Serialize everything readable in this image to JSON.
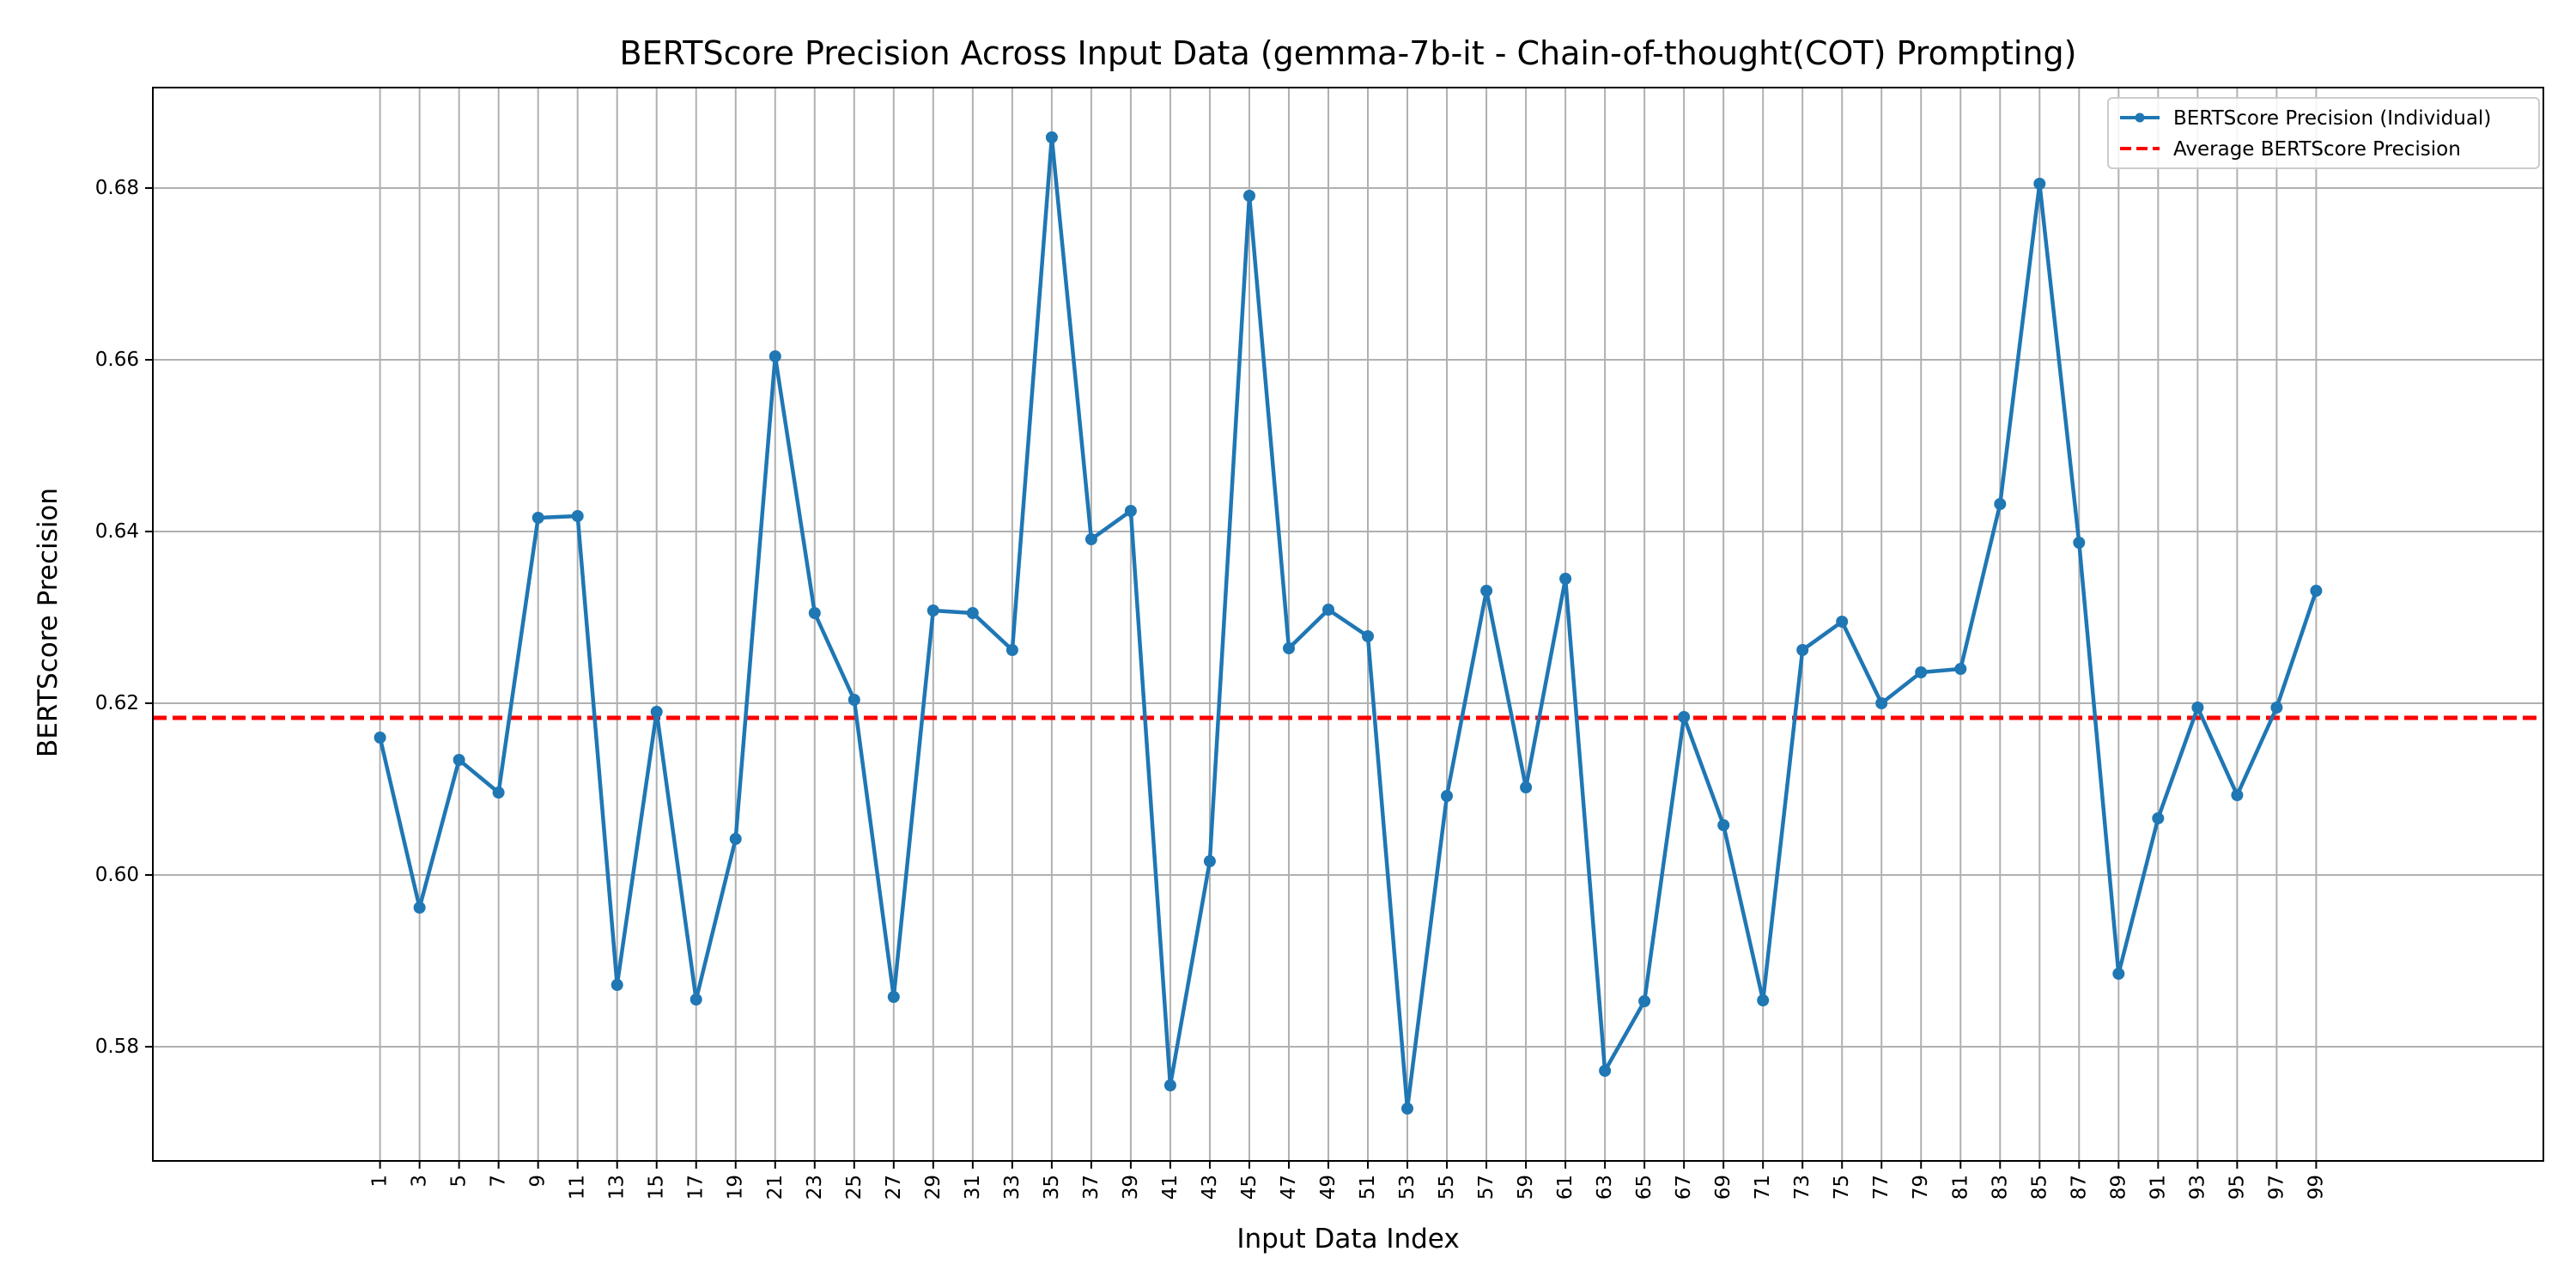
{
  "chart_data": {
    "type": "line",
    "title": "BERTScore Precision Across Input Data (gemma-7b-it - Chain-of-thought(COT) Prompting)",
    "xlabel": "Input Data Index",
    "ylabel": "BERTScore Precision",
    "x": [
      1,
      3,
      5,
      7,
      9,
      11,
      13,
      15,
      17,
      19,
      21,
      23,
      25,
      27,
      29,
      31,
      33,
      35,
      37,
      39,
      41,
      43,
      45,
      47,
      49,
      51,
      53,
      55,
      57,
      59,
      61,
      63,
      65,
      67,
      69,
      71,
      73,
      75,
      77,
      79,
      81,
      83,
      85,
      87,
      89,
      91,
      93,
      95,
      97,
      99
    ],
    "x_tick_labels": [
      "1",
      "3",
      "5",
      "7",
      "9",
      "11",
      "13",
      "15",
      "17",
      "19",
      "21",
      "23",
      "25",
      "27",
      "29",
      "31",
      "33",
      "35",
      "37",
      "39",
      "41",
      "43",
      "45",
      "47",
      "49",
      "51",
      "53",
      "55",
      "57",
      "59",
      "61",
      "63",
      "65",
      "67",
      "69",
      "71",
      "73",
      "75",
      "77",
      "79",
      "81",
      "83",
      "85",
      "87",
      "89",
      "91",
      "93",
      "95",
      "97",
      "99"
    ],
    "y_ticks": [
      0.58,
      0.6,
      0.62,
      0.64,
      0.66,
      0.68
    ],
    "y_tick_labels": [
      "0.58",
      "0.60",
      "0.62",
      "0.64",
      "0.66",
      "0.68"
    ],
    "xlim": [
      -10.5,
      110.5
    ],
    "ylim": [
      0.5667,
      0.6917
    ],
    "grid": true,
    "legend_position": "top-right",
    "series": [
      {
        "name": "BERTScore Precision (Individual)",
        "style": "line-marker",
        "color": "#1f77b4",
        "values": [
          0.616,
          0.5962,
          0.6134,
          0.6096,
          0.6416,
          0.6418,
          0.5872,
          0.619,
          0.5855,
          0.6042,
          0.6604,
          0.6305,
          0.6204,
          0.5858,
          0.6308,
          0.6305,
          0.6262,
          0.6859,
          0.6391,
          0.6424,
          0.5755,
          0.6016,
          0.6791,
          0.6264,
          0.6309,
          0.6278,
          0.5728,
          0.6092,
          0.6331,
          0.6102,
          0.6345,
          0.5772,
          0.5853,
          0.6184,
          0.6058,
          0.5854,
          0.6262,
          0.6295,
          0.62,
          0.6236,
          0.624,
          0.6432,
          0.6805,
          0.6387,
          0.5885,
          0.6066,
          0.6195,
          0.6093,
          0.6195,
          0.6331
        ]
      },
      {
        "name": "Average BERTScore Precision",
        "style": "dashed",
        "color": "#ff0000",
        "value": 0.6183
      }
    ]
  }
}
